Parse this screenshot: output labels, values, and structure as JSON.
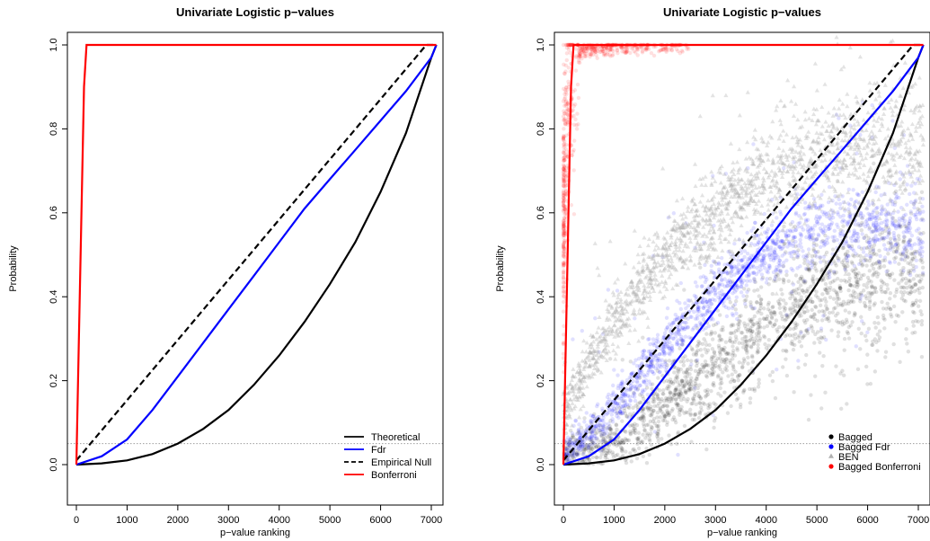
{
  "chart_data": [
    {
      "type": "line",
      "title": "Univariate Logistic p−values",
      "xlabel": "p−value ranking",
      "ylabel": "Probability",
      "xlim": [
        0,
        7100
      ],
      "ylim": [
        0,
        1
      ],
      "xticks": [
        0,
        1000,
        2000,
        3000,
        4000,
        5000,
        6000,
        7000
      ],
      "xtick_labels": [
        "0",
        "1000",
        "2000",
        "3000",
        "4000",
        "5000",
        "6000",
        "7000"
      ],
      "yticks": [
        0,
        0.2,
        0.4,
        0.6,
        0.8,
        1.0
      ],
      "ytick_labels": [
        "0.0",
        "0.2",
        "0.4",
        "0.6",
        "0.8",
        "1.0"
      ],
      "reference_line": {
        "y": 0.05,
        "color": "#9e9e9e",
        "style": "dotted"
      },
      "legend_position": "bottom-right",
      "series": [
        {
          "name": "Theoretical",
          "color": "#000000",
          "dash": "solid",
          "x": [
            0,
            500,
            1000,
            1500,
            2000,
            2500,
            3000,
            3500,
            4000,
            4500,
            5000,
            5500,
            6000,
            6500,
            7000,
            7100
          ],
          "y": [
            0,
            0.003,
            0.01,
            0.025,
            0.05,
            0.085,
            0.13,
            0.19,
            0.26,
            0.34,
            0.43,
            0.53,
            0.65,
            0.79,
            0.97,
            1.0
          ]
        },
        {
          "name": "Fdr",
          "color": "#0000ff",
          "dash": "solid",
          "x": [
            0,
            500,
            1000,
            1500,
            2000,
            2500,
            3000,
            3500,
            4000,
            4500,
            5000,
            5500,
            6000,
            6500,
            7000,
            7100
          ],
          "y": [
            0,
            0.02,
            0.06,
            0.13,
            0.21,
            0.29,
            0.37,
            0.45,
            0.53,
            0.61,
            0.68,
            0.75,
            0.82,
            0.89,
            0.97,
            1.0
          ]
        },
        {
          "name": "Empirical Null",
          "color": "#000000",
          "dash": "dashed",
          "x": [
            0,
            6900,
            7100
          ],
          "y": [
            0.01,
            1.0,
            1.0
          ]
        },
        {
          "name": "Bonferroni",
          "color": "#ff0000",
          "dash": "solid",
          "x": [
            0,
            50,
            150,
            200,
            7100
          ],
          "y": [
            0,
            0.3,
            0.9,
            1.0,
            1.0
          ]
        }
      ]
    },
    {
      "type": "scatter",
      "title": "Univariate Logistic p−values",
      "xlabel": "p−value ranking",
      "ylabel": "Probability",
      "xlim": [
        0,
        7100
      ],
      "ylim": [
        0,
        1
      ],
      "xticks": [
        0,
        1000,
        2000,
        3000,
        4000,
        5000,
        6000,
        7000
      ],
      "xtick_labels": [
        "0",
        "1000",
        "2000",
        "3000",
        "4000",
        "5000",
        "6000",
        "7000"
      ],
      "yticks": [
        0,
        0.2,
        0.4,
        0.6,
        0.8,
        1.0
      ],
      "ytick_labels": [
        "0.0",
        "0.2",
        "0.4",
        "0.6",
        "0.8",
        "1.0"
      ],
      "reference_line": {
        "y": 0.05,
        "color": "#9e9e9e",
        "style": "dotted"
      },
      "legend_position": "bottom-right",
      "scatter_series": [
        {
          "name": "Bagged",
          "color": "#000000",
          "marker": "circle",
          "x": [
            500,
            1000,
            1500,
            2000,
            2500,
            3000,
            3500,
            4000,
            4500,
            5000,
            5500,
            6000,
            6500,
            7000
          ],
          "y": [
            0.02,
            0.05,
            0.09,
            0.14,
            0.19,
            0.24,
            0.29,
            0.33,
            0.37,
            0.4,
            0.42,
            0.43,
            0.44,
            0.44
          ]
        },
        {
          "name": "Bagged Fdr",
          "color": "#0000ff",
          "marker": "circle",
          "x": [
            0,
            500,
            1000,
            1500,
            2000,
            2500,
            3000,
            3500,
            4000,
            4500,
            5000,
            5500,
            6000,
            6500,
            7000
          ],
          "y": [
            0.02,
            0.07,
            0.14,
            0.21,
            0.28,
            0.35,
            0.41,
            0.46,
            0.5,
            0.53,
            0.55,
            0.56,
            0.57,
            0.57,
            0.57
          ]
        },
        {
          "name": "BEN",
          "color": "#b0b0b0",
          "marker": "triangle",
          "x": [
            0,
            500,
            1000,
            1500,
            2000,
            2500,
            3000,
            3500,
            4000,
            4500,
            5000,
            5500,
            6000,
            6500,
            7000
          ],
          "y": [
            0.12,
            0.24,
            0.34,
            0.42,
            0.49,
            0.55,
            0.6,
            0.64,
            0.68,
            0.71,
            0.73,
            0.745,
            0.755,
            0.76,
            0.765
          ]
        },
        {
          "name": "Bagged Bonferroni",
          "color": "#ff0000",
          "marker": "circle",
          "x": [
            0,
            100,
            200,
            300,
            500,
            1000,
            2000,
            4000,
            7000
          ],
          "y": [
            0.6,
            0.9,
            0.96,
            0.98,
            0.99,
            0.995,
            0.998,
            1.0,
            1.0
          ]
        }
      ],
      "series": [
        {
          "color": "#000000",
          "dash": "solid",
          "x": [
            0,
            500,
            1000,
            1500,
            2000,
            2500,
            3000,
            3500,
            4000,
            4500,
            5000,
            5500,
            6000,
            6500,
            7000,
            7100
          ],
          "y": [
            0,
            0.003,
            0.01,
            0.025,
            0.05,
            0.085,
            0.13,
            0.19,
            0.26,
            0.34,
            0.43,
            0.53,
            0.65,
            0.79,
            0.97,
            1.0
          ]
        },
        {
          "color": "#0000ff",
          "dash": "solid",
          "x": [
            0,
            500,
            1000,
            1500,
            2000,
            2500,
            3000,
            3500,
            4000,
            4500,
            5000,
            5500,
            6000,
            6500,
            7000,
            7100
          ],
          "y": [
            0,
            0.02,
            0.06,
            0.13,
            0.21,
            0.29,
            0.37,
            0.45,
            0.53,
            0.61,
            0.68,
            0.75,
            0.82,
            0.89,
            0.97,
            1.0
          ]
        },
        {
          "color": "#000000",
          "dash": "dashed",
          "x": [
            0,
            6900,
            7100
          ],
          "y": [
            0.01,
            1.0,
            1.0
          ]
        },
        {
          "color": "#ff0000",
          "dash": "solid",
          "x": [
            0,
            50,
            150,
            200,
            7100
          ],
          "y": [
            0,
            0.3,
            0.9,
            1.0,
            1.0
          ]
        }
      ]
    }
  ]
}
